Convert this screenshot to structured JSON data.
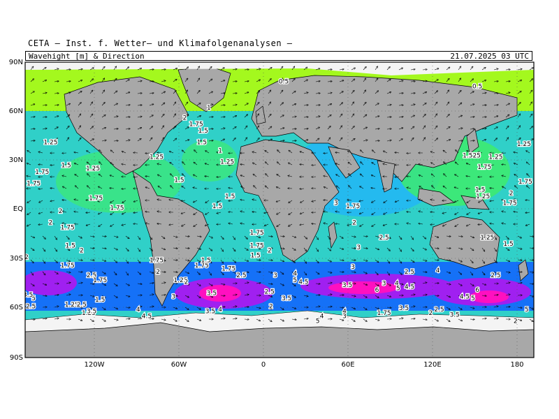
{
  "header": {
    "title": "CETA — Inst. f. Wetter— und Klimafolgenanalysen —",
    "subtitle_left": "Wavehight [m] & Direction",
    "subtitle_right": "21.07.2025 03 UTC"
  },
  "axes": {
    "lat_labels": [
      "90N",
      "60N",
      "30N",
      "EQ",
      "30S",
      "60S",
      "90S"
    ],
    "lon_labels": [
      "120W",
      "60W",
      "0",
      "60E",
      "120E",
      "180"
    ]
  },
  "colors": {
    "land": "#a8a8a8",
    "ice": "#f4f4f4",
    "calm": "#b8ff00",
    "low": "#40f060",
    "mid": "#30d0c8",
    "moderate": "#20b0ff",
    "high": "#1060ff",
    "very_high": "#a020f0",
    "extreme": "#ff10c0"
  },
  "wave_labels": [
    {
      "t": "0.5",
      "lon": 15,
      "lat": 77
    },
    {
      "t": "0.5",
      "lon": 152,
      "lat": 74
    },
    {
      "t": "2",
      "lon": -55,
      "lat": 55
    },
    {
      "t": "1",
      "lon": -38,
      "lat": 61
    },
    {
      "t": "1.75",
      "lon": -47,
      "lat": 51
    },
    {
      "t": "1.5",
      "lon": -42,
      "lat": 47
    },
    {
      "t": "1.5",
      "lon": -43,
      "lat": 40
    },
    {
      "t": "1",
      "lon": -30,
      "lat": 35
    },
    {
      "t": "1.25",
      "lon": -25,
      "lat": 28
    },
    {
      "t": "1.25",
      "lon": -75,
      "lat": 31
    },
    {
      "t": "1.25",
      "lon": -150,
      "lat": 40
    },
    {
      "t": "1.75",
      "lon": -156,
      "lat": 22
    },
    {
      "t": "1.5",
      "lon": -139,
      "lat": 26
    },
    {
      "t": "1.25",
      "lon": -120,
      "lat": 24
    },
    {
      "t": "1.75",
      "lon": -162,
      "lat": 15
    },
    {
      "t": "1.5",
      "lon": -59,
      "lat": 17
    },
    {
      "t": "1.75",
      "lon": -118,
      "lat": 6
    },
    {
      "t": "1.75",
      "lon": -103,
      "lat": 0
    },
    {
      "t": "1.5",
      "lon": -32,
      "lat": 1
    },
    {
      "t": "1.5",
      "lon": -23,
      "lat": 7
    },
    {
      "t": "2",
      "lon": -143,
      "lat": -2
    },
    {
      "t": "2",
      "lon": -150,
      "lat": -9
    },
    {
      "t": "1.75",
      "lon": -138,
      "lat": -12
    },
    {
      "t": "1.5",
      "lon": -136,
      "lat": -23
    },
    {
      "t": "2",
      "lon": -128,
      "lat": -26
    },
    {
      "t": "2",
      "lon": -167,
      "lat": -30
    },
    {
      "t": "1.75",
      "lon": -138,
      "lat": -35
    },
    {
      "t": "2.5",
      "lon": -121,
      "lat": -41
    },
    {
      "t": "1.75",
      "lon": -115,
      "lat": -44
    },
    {
      "t": "1.75",
      "lon": -75,
      "lat": -32
    },
    {
      "t": "2",
      "lon": -74,
      "lat": -39
    },
    {
      "t": "1.25",
      "lon": -58,
      "lat": -44
    },
    {
      "t": "2",
      "lon": -54,
      "lat": -45
    },
    {
      "t": "1.75",
      "lon": -43,
      "lat": -35
    },
    {
      "t": "1.5",
      "lon": -40,
      "lat": -32
    },
    {
      "t": "1.75",
      "lon": -24,
      "lat": -37
    },
    {
      "t": "2.5",
      "lon": -15,
      "lat": -41
    },
    {
      "t": "3.5",
      "lon": -36,
      "lat": -52
    },
    {
      "t": "3",
      "lon": -63,
      "lat": -54
    },
    {
      "t": "5",
      "lon": -162,
      "lat": -55
    },
    {
      "t": "3.5",
      "lon": -166,
      "lat": -53
    },
    {
      "t": "2.5",
      "lon": -164,
      "lat": -60
    },
    {
      "t": "1.25",
      "lon": -135,
      "lat": -59
    },
    {
      "t": "2.5",
      "lon": -128,
      "lat": -59
    },
    {
      "t": "1.5",
      "lon": -115,
      "lat": -56
    },
    {
      "t": "1.25",
      "lon": -123,
      "lat": -64
    },
    {
      "t": "3.5",
      "lon": -121,
      "lat": -63
    },
    {
      "t": "4",
      "lon": -88,
      "lat": -62
    },
    {
      "t": "4.5",
      "lon": -82,
      "lat": -66
    },
    {
      "t": "3.5",
      "lon": -37,
      "lat": -63
    },
    {
      "t": "4",
      "lon": -30,
      "lat": -62
    },
    {
      "t": "2",
      "lon": 6,
      "lat": -60
    },
    {
      "t": "1.75",
      "lon": -4,
      "lat": -15
    },
    {
      "t": "1.75",
      "lon": -4,
      "lat": -23
    },
    {
      "t": "1.5",
      "lon": -5,
      "lat": -29
    },
    {
      "t": "2",
      "lon": 5,
      "lat": -26
    },
    {
      "t": "3",
      "lon": 9,
      "lat": -41
    },
    {
      "t": "2.5",
      "lon": 5,
      "lat": -51
    },
    {
      "t": "3.5",
      "lon": 17,
      "lat": -55
    },
    {
      "t": "4",
      "lon": 23,
      "lat": -40
    },
    {
      "t": "5",
      "lon": 23,
      "lat": -44
    },
    {
      "t": "4.5",
      "lon": 29,
      "lat": -45
    },
    {
      "t": "3.5",
      "lon": 60,
      "lat": -47
    },
    {
      "t": "3",
      "lon": 64,
      "lat": -36
    },
    {
      "t": "2",
      "lon": 65,
      "lat": -9
    },
    {
      "t": "3",
      "lon": 68,
      "lat": -24
    },
    {
      "t": "3",
      "lon": 52,
      "lat": 3
    },
    {
      "t": "1.75",
      "lon": 64,
      "lat": 1
    },
    {
      "t": "2.5",
      "lon": 86,
      "lat": -18
    },
    {
      "t": "3",
      "lon": 86,
      "lat": -46
    },
    {
      "t": "6",
      "lon": 81,
      "lat": -50
    },
    {
      "t": "4",
      "lon": 95,
      "lat": -46
    },
    {
      "t": "5",
      "lon": 96,
      "lat": -49
    },
    {
      "t": "4.5",
      "lon": 104,
      "lat": -48
    },
    {
      "t": "2.5",
      "lon": 104,
      "lat": -39
    },
    {
      "t": "4",
      "lon": 124,
      "lat": -38
    },
    {
      "t": "3.5",
      "lon": 100,
      "lat": -61
    },
    {
      "t": "1.75",
      "lon": 86,
      "lat": -64
    },
    {
      "t": "2.5",
      "lon": 125,
      "lat": -62
    },
    {
      "t": "2",
      "lon": 119,
      "lat": -64
    },
    {
      "t": "3.5",
      "lon": 136,
      "lat": -65
    },
    {
      "t": "4.5",
      "lon": 143,
      "lat": -54
    },
    {
      "t": "5",
      "lon": 149,
      "lat": -55
    },
    {
      "t": "6",
      "lon": 152,
      "lat": -50
    },
    {
      "t": "2.5",
      "lon": 165,
      "lat": -41
    },
    {
      "t": "1.5",
      "lon": 174,
      "lat": -22
    },
    {
      "t": "1.25",
      "lon": 159,
      "lat": -18
    },
    {
      "t": "1.75",
      "lon": 175,
      "lat": 3
    },
    {
      "t": "1.5",
      "lon": 154,
      "lat": 11
    },
    {
      "t": "1.25",
      "lon": 156,
      "lat": 7
    },
    {
      "t": "2",
      "lon": 176,
      "lat": 9
    },
    {
      "t": "1.75",
      "lon": 186,
      "lat": 16
    },
    {
      "t": "1.75",
      "lon": 157,
      "lat": 25
    },
    {
      "t": "1.25",
      "lon": 165,
      "lat": 31
    },
    {
      "t": "1.25",
      "lon": 185,
      "lat": 39
    },
    {
      "t": "1.525",
      "lon": 148,
      "lat": 32
    },
    {
      "t": "4",
      "lon": 58,
      "lat": -63
    },
    {
      "t": "4",
      "lon": 42,
      "lat": -66
    },
    {
      "t": "5",
      "lon": 39,
      "lat": -69
    },
    {
      "t": "3",
      "lon": 58,
      "lat": -66
    },
    {
      "t": "2",
      "lon": 179,
      "lat": -69
    },
    {
      "t": "5",
      "lon": 187,
      "lat": -62
    }
  ]
}
